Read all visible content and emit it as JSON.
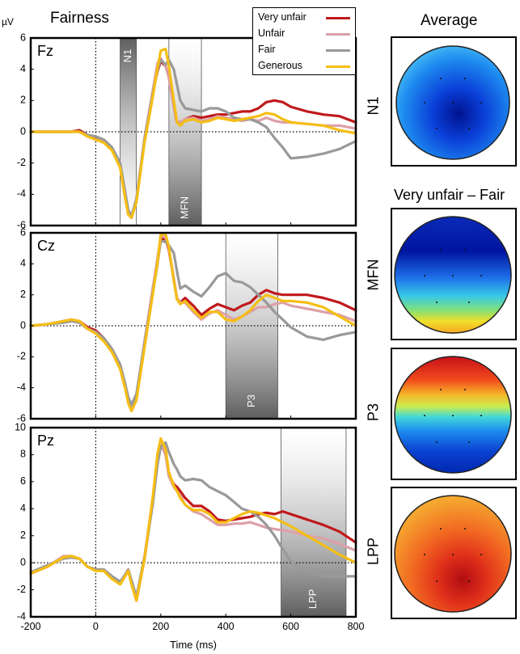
{
  "figure": {
    "title": "Fairness",
    "unit": "µV",
    "xlabel": "Time (ms)",
    "maps_title_top": "Average",
    "maps_title_diff": "Very unfair – Fair",
    "colors": {
      "very_unfair": "#c0191c",
      "unfair": "#dca0a7",
      "fair": "#999999",
      "generous": "#f5be14"
    }
  },
  "legend": {
    "items": [
      {
        "label": "Very unfair",
        "color": "#c0191c"
      },
      {
        "label": "Unfair",
        "color": "#dca0a7"
      },
      {
        "label": "Fair",
        "color": "#999999"
      },
      {
        "label": "Generous",
        "color": "#f5be14"
      }
    ]
  },
  "chart_data": [
    {
      "type": "line",
      "electrode": "Fz",
      "xlim": [
        -200,
        800
      ],
      "ylim": [
        -6,
        6
      ],
      "yticks": [
        -6,
        -4,
        -2,
        0,
        2,
        4,
        6
      ],
      "xticks": [
        -200,
        0,
        200,
        400,
        600,
        800
      ],
      "windows": [
        {
          "label": "N1",
          "range": [
            75,
            125
          ],
          "fade": "down"
        },
        {
          "label": "MFN",
          "range": [
            225,
            325
          ],
          "fade": "up"
        }
      ],
      "x": [
        -200,
        -150,
        -100,
        -75,
        -50,
        -25,
        0,
        25,
        50,
        75,
        90,
        100,
        110,
        125,
        150,
        175,
        190,
        200,
        215,
        225,
        240,
        250,
        260,
        275,
        300,
        325,
        350,
        375,
        400,
        425,
        450,
        475,
        500,
        525,
        550,
        575,
        600,
        650,
        700,
        750,
        800
      ],
      "series": [
        {
          "name": "Very unfair",
          "values": [
            0,
            0,
            0,
            0,
            0.1,
            -0.2,
            -0.4,
            -0.6,
            -1.1,
            -2.2,
            -4.0,
            -5.1,
            -5.5,
            -4.4,
            -0.5,
            2.5,
            3.9,
            4.5,
            4.2,
            3.5,
            1.6,
            0.6,
            0.5,
            0.8,
            1.0,
            0.9,
            1.0,
            1.1,
            1.1,
            1.2,
            1.3,
            1.3,
            1.5,
            1.9,
            2.0,
            1.9,
            1.6,
            1.3,
            1.1,
            1.0,
            0.6
          ]
        },
        {
          "name": "Unfair",
          "values": [
            0,
            0,
            0,
            0,
            0,
            -0.3,
            -0.5,
            -0.6,
            -1.1,
            -2.3,
            -4.1,
            -5.2,
            -5.4,
            -4.3,
            -0.4,
            2.6,
            4.4,
            4.7,
            4.2,
            3.5,
            1.6,
            0.7,
            0.6,
            0.8,
            0.9,
            0.7,
            0.8,
            1.0,
            0.9,
            0.8,
            0.7,
            0.8,
            0.7,
            0.9,
            0.7,
            0.6,
            0.6,
            0.5,
            0.4,
            0.4,
            0.2
          ]
        },
        {
          "name": "Fair",
          "values": [
            0,
            0,
            0,
            0,
            0,
            -0.2,
            -0.3,
            -0.5,
            -1.0,
            -2.0,
            -3.8,
            -5.0,
            -5.4,
            -4.3,
            -0.5,
            2.4,
            4.0,
            4.6,
            4.3,
            4.6,
            4.0,
            3.0,
            2.0,
            1.5,
            1.4,
            1.3,
            1.5,
            1.5,
            1.3,
            0.9,
            0.8,
            0.8,
            0.6,
            0.3,
            -0.4,
            -1.0,
            -1.7,
            -1.6,
            -1.4,
            -1.1,
            -0.6
          ]
        },
        {
          "name": "Generous",
          "values": [
            0,
            0,
            0,
            0,
            0,
            -0.3,
            -0.5,
            -0.7,
            -1.2,
            -2.3,
            -4.2,
            -5.3,
            -5.5,
            -4.5,
            -0.7,
            2.2,
            4.1,
            5.2,
            5.3,
            4.2,
            2.0,
            0.6,
            0.4,
            0.7,
            0.8,
            0.6,
            0.7,
            0.9,
            0.8,
            0.7,
            0.8,
            0.9,
            1.0,
            1.2,
            1.1,
            0.8,
            0.6,
            0.5,
            0.4,
            0.1,
            -0.1
          ]
        }
      ]
    },
    {
      "type": "line",
      "electrode": "Cz",
      "xlim": [
        -200,
        800
      ],
      "ylim": [
        -6,
        6
      ],
      "yticks": [
        -6,
        -4,
        -2,
        0,
        2,
        4,
        6
      ],
      "xticks": [
        -200,
        0,
        200,
        400,
        600,
        800
      ],
      "windows": [
        {
          "label": "P3",
          "range": [
            400,
            560
          ],
          "fade": "up"
        }
      ],
      "x": [
        -200,
        -150,
        -100,
        -75,
        -50,
        -25,
        0,
        25,
        50,
        75,
        90,
        100,
        110,
        125,
        150,
        175,
        190,
        200,
        215,
        225,
        240,
        250,
        260,
        275,
        300,
        325,
        350,
        375,
        400,
        425,
        450,
        475,
        500,
        525,
        550,
        575,
        600,
        650,
        700,
        750,
        800
      ],
      "series": [
        {
          "name": "Very unfair",
          "values": [
            0,
            0.1,
            0.3,
            0.4,
            0.3,
            -0.1,
            -0.3,
            -0.8,
            -1.5,
            -2.6,
            -3.8,
            -4.8,
            -5.4,
            -4.6,
            -1.2,
            2.2,
            4.2,
            5.6,
            5.6,
            4.9,
            3.0,
            1.7,
            1.5,
            1.8,
            1.3,
            0.7,
            1.1,
            1.4,
            1.2,
            1.0,
            1.3,
            1.5,
            2.0,
            2.3,
            2.1,
            2.0,
            2.0,
            2.0,
            1.8,
            1.5,
            1.0
          ]
        },
        {
          "name": "Unfair",
          "values": [
            0,
            0.1,
            0.3,
            0.4,
            0.3,
            -0.2,
            -0.4,
            -0.9,
            -1.6,
            -2.7,
            -3.9,
            -4.9,
            -5.4,
            -4.6,
            -1.0,
            2.4,
            4.4,
            5.8,
            5.7,
            5.0,
            3.1,
            1.8,
            1.5,
            1.5,
            0.9,
            0.4,
            0.8,
            1.0,
            0.7,
            0.4,
            0.6,
            0.9,
            1.2,
            1.2,
            1.4,
            1.5,
            1.3,
            1.1,
            0.9,
            0.7,
            0.3
          ]
        },
        {
          "name": "Fair",
          "values": [
            0,
            0.1,
            0.2,
            0.3,
            0.2,
            -0.2,
            -0.4,
            -0.8,
            -1.5,
            -2.5,
            -3.7,
            -4.6,
            -5.1,
            -4.4,
            -1.1,
            2.1,
            4.0,
            5.5,
            5.4,
            5.2,
            4.7,
            3.5,
            2.4,
            2.6,
            2.2,
            1.9,
            2.5,
            3.2,
            3.4,
            2.9,
            2.8,
            2.5,
            2.0,
            1.5,
            0.9,
            0.4,
            -0.1,
            -0.7,
            -0.9,
            -0.6,
            -0.4
          ]
        },
        {
          "name": "Generous",
          "values": [
            0,
            0.1,
            0.3,
            0.4,
            0.3,
            -0.2,
            -0.5,
            -1.0,
            -1.7,
            -2.8,
            -4.0,
            -5.0,
            -5.5,
            -4.8,
            -1.4,
            2.0,
            4.1,
            5.9,
            5.9,
            5.1,
            2.9,
            1.7,
            1.4,
            1.6,
            1.0,
            0.5,
            0.9,
            0.9,
            0.4,
            0.3,
            0.6,
            1.0,
            1.6,
            2.0,
            1.8,
            1.6,
            1.6,
            1.5,
            1.2,
            0.6,
            0.0
          ]
        }
      ]
    },
    {
      "type": "line",
      "electrode": "Pz",
      "xlim": [
        -200,
        800
      ],
      "ylim": [
        -4,
        10
      ],
      "yticks": [
        -4,
        -2,
        0,
        2,
        4,
        6,
        8,
        10
      ],
      "xticks": [
        -200,
        0,
        200,
        400,
        600,
        800
      ],
      "windows": [
        {
          "label": "LPP",
          "range": [
            570,
            770
          ],
          "fade": "up"
        }
      ],
      "x": [
        -200,
        -150,
        -100,
        -75,
        -50,
        -25,
        0,
        25,
        50,
        75,
        90,
        100,
        110,
        125,
        150,
        175,
        190,
        200,
        215,
        225,
        240,
        250,
        260,
        275,
        300,
        325,
        350,
        375,
        400,
        425,
        450,
        475,
        500,
        525,
        550,
        575,
        600,
        650,
        700,
        750,
        800
      ],
      "series": [
        {
          "name": "Very unfair",
          "values": [
            -0.8,
            -0.3,
            0.4,
            0.4,
            0.3,
            -0.3,
            -0.5,
            -0.6,
            -1.1,
            -1.5,
            -0.9,
            -0.5,
            -1.5,
            -2.8,
            0.3,
            4.5,
            7.5,
            8.9,
            8.0,
            6.5,
            5.8,
            5.6,
            5.3,
            4.8,
            4.2,
            4.2,
            3.8,
            3.2,
            3.1,
            3.2,
            3.3,
            3.4,
            3.6,
            3.7,
            3.6,
            3.8,
            3.6,
            3.2,
            2.8,
            2.3,
            1.5
          ]
        },
        {
          "name": "Unfair",
          "values": [
            -0.8,
            -0.3,
            0.5,
            0.5,
            0.3,
            -0.3,
            -0.5,
            -0.5,
            -1.1,
            -1.5,
            -0.9,
            -0.5,
            -1.4,
            -2.6,
            0.5,
            4.7,
            7.8,
            9.0,
            8.0,
            6.4,
            5.6,
            5.3,
            5.0,
            4.3,
            3.8,
            3.6,
            3.2,
            2.8,
            2.8,
            2.9,
            2.9,
            3.0,
            2.8,
            2.6,
            2.5,
            2.4,
            2.3,
            2.0,
            1.8,
            1.4,
            0.9
          ]
        },
        {
          "name": "Fair",
          "values": [
            -0.7,
            -0.2,
            0.3,
            0.4,
            0.3,
            -0.3,
            -0.5,
            -0.5,
            -1.0,
            -1.4,
            -0.9,
            -0.5,
            -1.3,
            -2.5,
            0.4,
            4.3,
            7.3,
            8.6,
            8.9,
            8.2,
            7.3,
            6.9,
            6.4,
            6.1,
            6.2,
            6.1,
            5.6,
            5.3,
            5.0,
            4.5,
            4.0,
            3.8,
            3.4,
            2.8,
            2.0,
            1.0,
            0.1,
            -0.7,
            -1.0,
            -1.0,
            -1.0
          ]
        },
        {
          "name": "Generous",
          "values": [
            -0.8,
            -0.3,
            0.4,
            0.5,
            0.3,
            -0.3,
            -0.6,
            -0.6,
            -1.2,
            -1.6,
            -1.0,
            -0.6,
            -1.6,
            -2.8,
            0.3,
            4.8,
            8.1,
            9.2,
            8.4,
            6.7,
            5.7,
            5.3,
            4.8,
            4.3,
            3.9,
            3.9,
            3.6,
            3.0,
            3.0,
            3.3,
            3.6,
            3.8,
            3.7,
            3.5,
            3.3,
            3.0,
            2.7,
            2.0,
            1.3,
            0.6,
            0.0
          ]
        }
      ]
    }
  ],
  "topomaps": [
    {
      "label": "N1",
      "pattern": "n1"
    },
    {
      "label": "MFN",
      "pattern": "mfn"
    },
    {
      "label": "P3",
      "pattern": "p3"
    },
    {
      "label": "LPP",
      "pattern": "lpp"
    }
  ]
}
